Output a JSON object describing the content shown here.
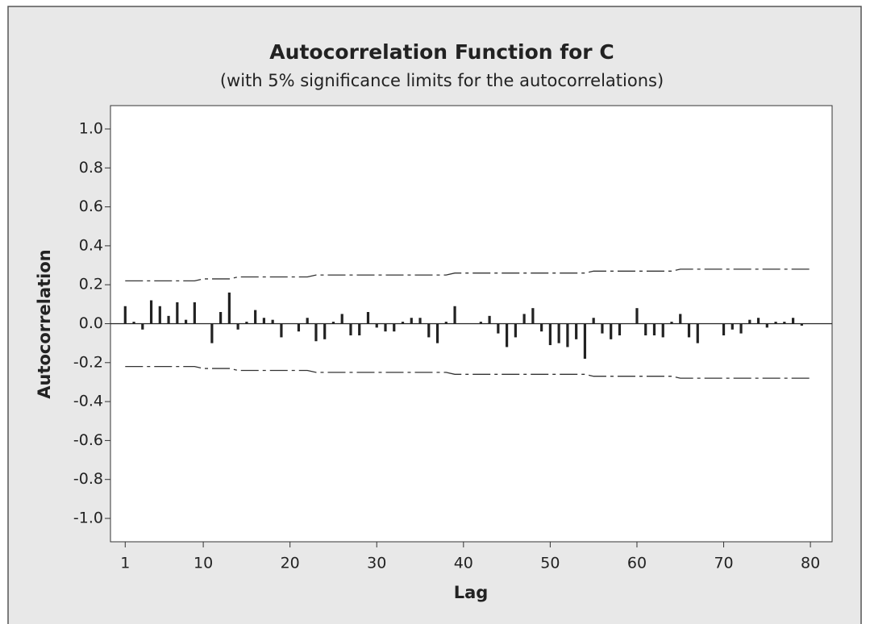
{
  "chart_data": {
    "type": "acf",
    "title": "Autocorrelation Function for C",
    "subtitle": "(with 5% significance limits for the autocorrelations)",
    "x_label": "Lag",
    "y_label": "Autocorrelation",
    "color": "#222222",
    "x": [
      1,
      2,
      3,
      4,
      5,
      6,
      7,
      8,
      9,
      10,
      11,
      12,
      13,
      14,
      15,
      16,
      17,
      18,
      19,
      20,
      21,
      22,
      23,
      24,
      25,
      26,
      27,
      28,
      29,
      30,
      31,
      32,
      33,
      34,
      35,
      36,
      37,
      38,
      39,
      40,
      41,
      42,
      43,
      44,
      45,
      46,
      47,
      48,
      49,
      50,
      51,
      52,
      53,
      54,
      55,
      56,
      57,
      58,
      59,
      60,
      61,
      62,
      63,
      64,
      65,
      66,
      67,
      68,
      69,
      70,
      71,
      72,
      73,
      74,
      75,
      76,
      77,
      78,
      79,
      80
    ],
    "values": [
      0.09,
      0.01,
      -0.03,
      0.12,
      0.09,
      0.04,
      0.11,
      0.02,
      0.11,
      0.0,
      -0.1,
      0.06,
      0.16,
      -0.03,
      0.01,
      0.07,
      0.03,
      0.02,
      -0.07,
      0.0,
      -0.04,
      0.03,
      -0.09,
      -0.08,
      0.01,
      0.05,
      -0.06,
      -0.06,
      0.06,
      -0.02,
      -0.04,
      -0.04,
      0.01,
      0.03,
      0.03,
      -0.07,
      -0.1,
      0.01,
      0.09,
      0.0,
      0.0,
      0.01,
      0.04,
      -0.05,
      -0.12,
      -0.07,
      0.05,
      0.08,
      -0.04,
      -0.11,
      -0.1,
      -0.12,
      -0.08,
      -0.18,
      0.03,
      -0.05,
      -0.08,
      -0.06,
      0.0,
      0.08,
      -0.06,
      -0.06,
      -0.07,
      0.01,
      0.05,
      -0.07,
      -0.1,
      0.0,
      0.0,
      -0.06,
      -0.03,
      -0.05,
      0.02,
      0.03,
      -0.02,
      0.01,
      0.01,
      0.03,
      -0.01,
      0.0
    ],
    "upper_limit": [
      0.22,
      0.22,
      0.22,
      0.22,
      0.22,
      0.22,
      0.22,
      0.22,
      0.22,
      0.23,
      0.23,
      0.23,
      0.23,
      0.24,
      0.24,
      0.24,
      0.24,
      0.24,
      0.24,
      0.24,
      0.24,
      0.24,
      0.25,
      0.25,
      0.25,
      0.25,
      0.25,
      0.25,
      0.25,
      0.25,
      0.25,
      0.25,
      0.25,
      0.25,
      0.25,
      0.25,
      0.25,
      0.25,
      0.26,
      0.26,
      0.26,
      0.26,
      0.26,
      0.26,
      0.26,
      0.26,
      0.26,
      0.26,
      0.26,
      0.26,
      0.26,
      0.26,
      0.26,
      0.26,
      0.27,
      0.27,
      0.27,
      0.27,
      0.27,
      0.27,
      0.27,
      0.27,
      0.27,
      0.27,
      0.28,
      0.28,
      0.28,
      0.28,
      0.28,
      0.28,
      0.28,
      0.28,
      0.28,
      0.28,
      0.28,
      0.28,
      0.28,
      0.28,
      0.28,
      0.28
    ],
    "lower_limit": [
      -0.22,
      -0.22,
      -0.22,
      -0.22,
      -0.22,
      -0.22,
      -0.22,
      -0.22,
      -0.22,
      -0.23,
      -0.23,
      -0.23,
      -0.23,
      -0.24,
      -0.24,
      -0.24,
      -0.24,
      -0.24,
      -0.24,
      -0.24,
      -0.24,
      -0.24,
      -0.25,
      -0.25,
      -0.25,
      -0.25,
      -0.25,
      -0.25,
      -0.25,
      -0.25,
      -0.25,
      -0.25,
      -0.25,
      -0.25,
      -0.25,
      -0.25,
      -0.25,
      -0.25,
      -0.26,
      -0.26,
      -0.26,
      -0.26,
      -0.26,
      -0.26,
      -0.26,
      -0.26,
      -0.26,
      -0.26,
      -0.26,
      -0.26,
      -0.26,
      -0.26,
      -0.26,
      -0.26,
      -0.27,
      -0.27,
      -0.27,
      -0.27,
      -0.27,
      -0.27,
      -0.27,
      -0.27,
      -0.27,
      -0.27,
      -0.28,
      -0.28,
      -0.28,
      -0.28,
      -0.28,
      -0.28,
      -0.28,
      -0.28,
      -0.28,
      -0.28,
      -0.28,
      -0.28,
      -0.28,
      -0.28,
      -0.28,
      -0.28
    ],
    "xlim": [
      -0.7,
      82.5
    ],
    "xticks": [
      1,
      10,
      20,
      30,
      40,
      50,
      60,
      70,
      80
    ],
    "ylim": [
      -1.12,
      1.12
    ],
    "yticks": [
      {
        "value": 1.0,
        "label": "1.0"
      },
      {
        "value": 0.8,
        "label": "0.8"
      },
      {
        "value": 0.6,
        "label": "0.6"
      },
      {
        "value": 0.4,
        "label": "0.4"
      },
      {
        "value": 0.2,
        "label": "0.2"
      },
      {
        "value": 0.0,
        "label": "0.0"
      },
      {
        "value": -0.2,
        "label": "-0.2"
      },
      {
        "value": -0.4,
        "label": "-0.4"
      },
      {
        "value": -0.6,
        "label": "-0.6"
      },
      {
        "value": -0.8,
        "label": "-0.8"
      },
      {
        "value": -1.0,
        "label": "-1.0"
      }
    ]
  }
}
